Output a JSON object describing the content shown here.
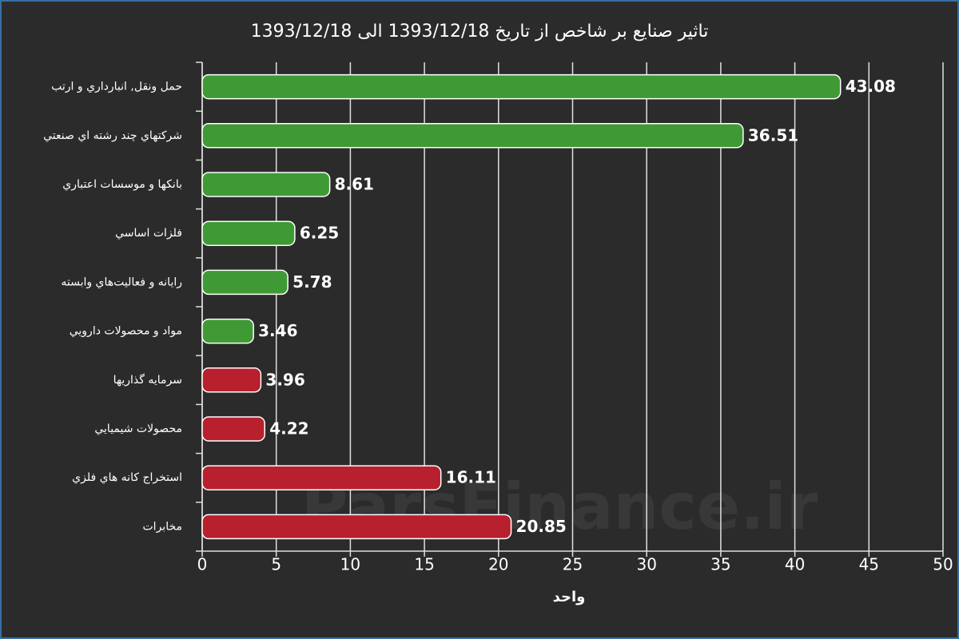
{
  "chart_data": {
    "type": "hbar",
    "title": "تاثير صنايع بر شاخص از تاريخ 1393/12/18 الی 1393/12/18",
    "watermark": "ParsFinance.ir",
    "x_label": "واحد",
    "categories": [
      "حمل ونقل, انبارداري و ارتب",
      "شركتهاي چند رشته اي صنعتي",
      "بانكها و موسسات اعتباري",
      "فلزات اساسي",
      "رايانه و فعاليت‌هاي وابسته",
      "مواد و محصولات دارويي",
      "سرمايه گذاريها",
      "محصولات شيميايي",
      "استخراج كانه هاي فلزي",
      "مخابرات"
    ],
    "values": [
      43.08,
      36.51,
      8.61,
      6.25,
      5.78,
      3.46,
      3.96,
      4.22,
      16.11,
      20.85
    ],
    "colors": [
      "#3f9a35",
      "#3f9a35",
      "#3f9a35",
      "#3f9a35",
      "#3f9a35",
      "#3f9a35",
      "#b8202e",
      "#b8202e",
      "#b8202e",
      "#b8202e"
    ],
    "xlim": [
      0,
      50
    ],
    "xticks": [
      0,
      5,
      10,
      15,
      20,
      25,
      30,
      35,
      40,
      45,
      50
    ],
    "grid": true
  }
}
